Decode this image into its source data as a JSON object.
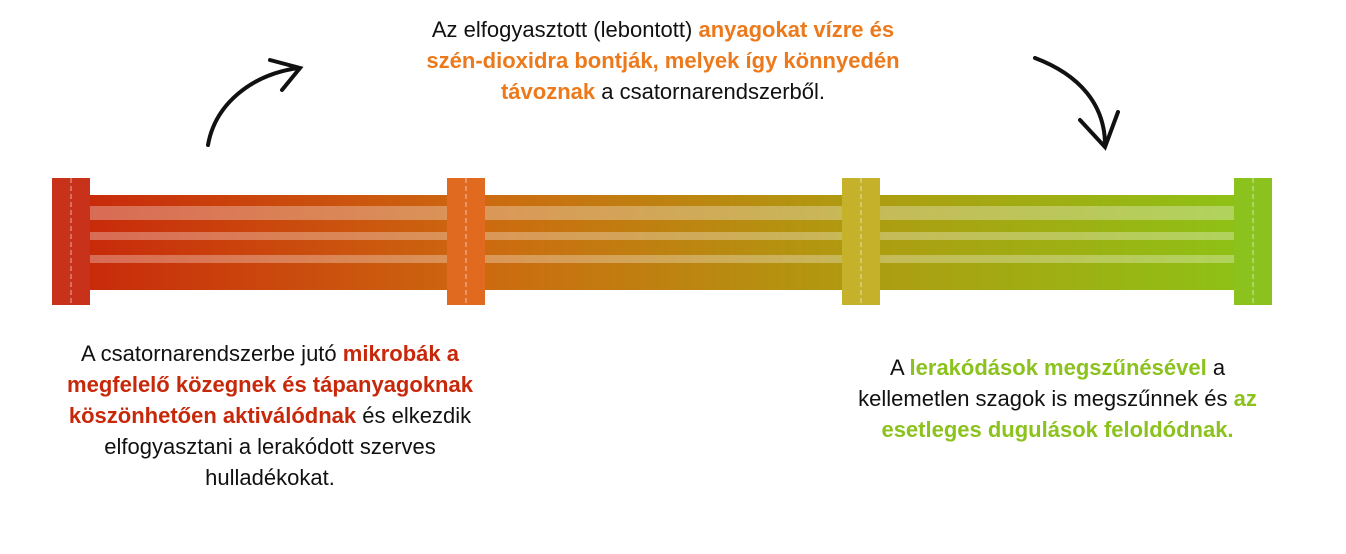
{
  "top_text": {
    "segments": [
      "Az elfogyasztott (lebontott)",
      "anyagokat vízre és szén-dioxidra bontják, melyek így könnyedén távoznak",
      "a csatornarendszerből."
    ]
  },
  "left_text": {
    "segments": [
      "A csatornarendszerbe jutó",
      "mikrobák a megfelelő közegnek és tápanyagoknak köszönhetően aktiválódnak",
      "és elkezdik elfogyasztani a lerakódott szerves hulladékokat."
    ]
  },
  "right_text": {
    "segments": [
      "A",
      "lerakódások megszűnésével",
      "a kellemetlen szagok is megszűnnek és",
      "az esetleges dugulások feloldódnak."
    ]
  }
}
